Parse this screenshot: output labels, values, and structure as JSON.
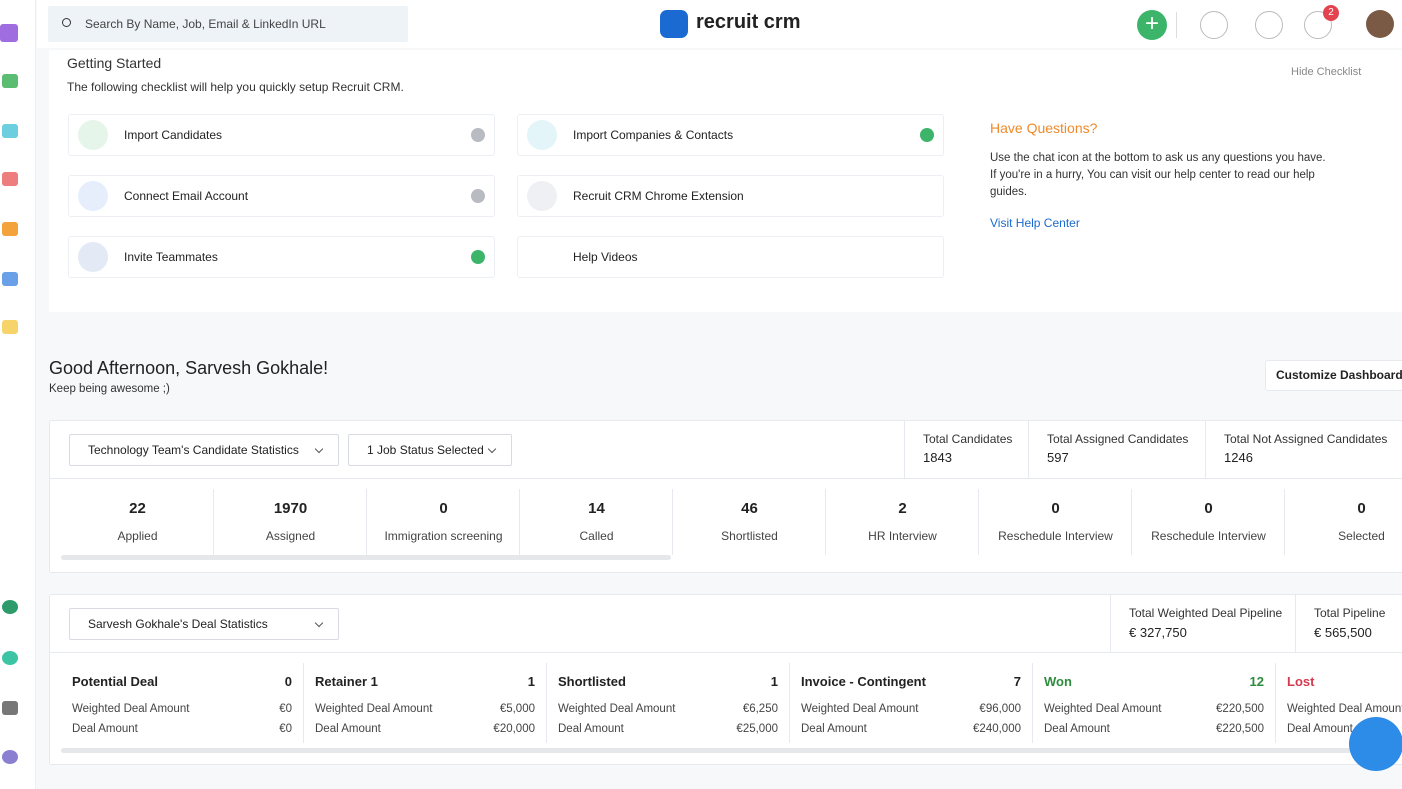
{
  "header": {
    "search_placeholder": "Search By Name, Job, Email & LinkedIn URL",
    "logo": "recruit crm",
    "notification_count": 2
  },
  "checklist": {
    "title": "Getting Started",
    "subtitle": "The following checklist will help you quickly setup Recruit CRM.",
    "hide_label": "Hide Checklist",
    "items": [
      {
        "label": "Import Candidates",
        "completed": false
      },
      {
        "label": "Import Companies & Contacts",
        "completed": true
      },
      {
        "label": "Connect Email Account",
        "completed": false
      },
      {
        "label": "Recruit CRM Chrome Extension"
      },
      {
        "label": "Invite Teammates",
        "completed": true
      },
      {
        "label": "Help Videos"
      }
    ]
  },
  "help": {
    "title": "Have Questions?",
    "paragraphs": [
      "Use the chat icon at the bottom to ask us any questions you have.",
      "If you're in a hurry, You can visit our help center to read our help guides."
    ],
    "link": "Visit Help Center"
  },
  "greeting": {
    "title": "Good Afternoon, Sarvesh Gokhale!",
    "subtitle": "Keep being awesome ;)",
    "button": "Customize Dashboard"
  },
  "candidate_stats": {
    "team_filter": "Technology Team's Candidate Statistics",
    "status_filter": "1 Job Status Selected",
    "totals": [
      {
        "label": "Total Candidates",
        "value": 1843
      },
      {
        "label": "Total Assigned Candidates",
        "value": 597
      },
      {
        "label": "Total Not Assigned Candidates",
        "value": 1246
      }
    ],
    "stages": [
      {
        "value": 22,
        "label": "Applied"
      },
      {
        "value": 1970,
        "label": "Assigned"
      },
      {
        "value": 0,
        "label": "Immigration screening"
      },
      {
        "value": 14,
        "label": "Called"
      },
      {
        "value": 46,
        "label": "Shortlisted"
      },
      {
        "value": 2,
        "label": "HR Interview"
      },
      {
        "value": 0,
        "label": "Reschedule Interview"
      },
      {
        "value": 0,
        "label": "Reschedule Interview"
      },
      {
        "value": 0,
        "label": "Selected"
      }
    ]
  },
  "deal_stats": {
    "filter": "Sarvesh Gokhale's Deal Statistics",
    "totals": [
      {
        "label": "Total Weighted Deal Pipeline",
        "value": "€ 327,750"
      },
      {
        "label": "Total Pipeline",
        "value": "€ 565,500"
      }
    ],
    "weighted_label": "Weighted Deal Amount",
    "amount_label": "Deal Amount",
    "stages": [
      {
        "name": "Potential Deal",
        "count": 0,
        "weighted": "€0",
        "amount": "€0",
        "color": "#222222"
      },
      {
        "name": "Retainer 1",
        "count": 1,
        "weighted": "€5,000",
        "amount": "€20,000",
        "color": "#222222"
      },
      {
        "name": "Shortlisted",
        "count": 1,
        "weighted": "€6,250",
        "amount": "€25,000",
        "color": "#222222"
      },
      {
        "name": "Invoice - Contingent",
        "count": 7,
        "weighted": "€96,000",
        "amount": "€240,000",
        "color": "#222222"
      },
      {
        "name": "Won",
        "count": 12,
        "weighted": "€220,500",
        "amount": "€220,500",
        "color": "#2e8b3e"
      },
      {
        "name": "Lost",
        "color": "#d23a4f"
      }
    ]
  }
}
